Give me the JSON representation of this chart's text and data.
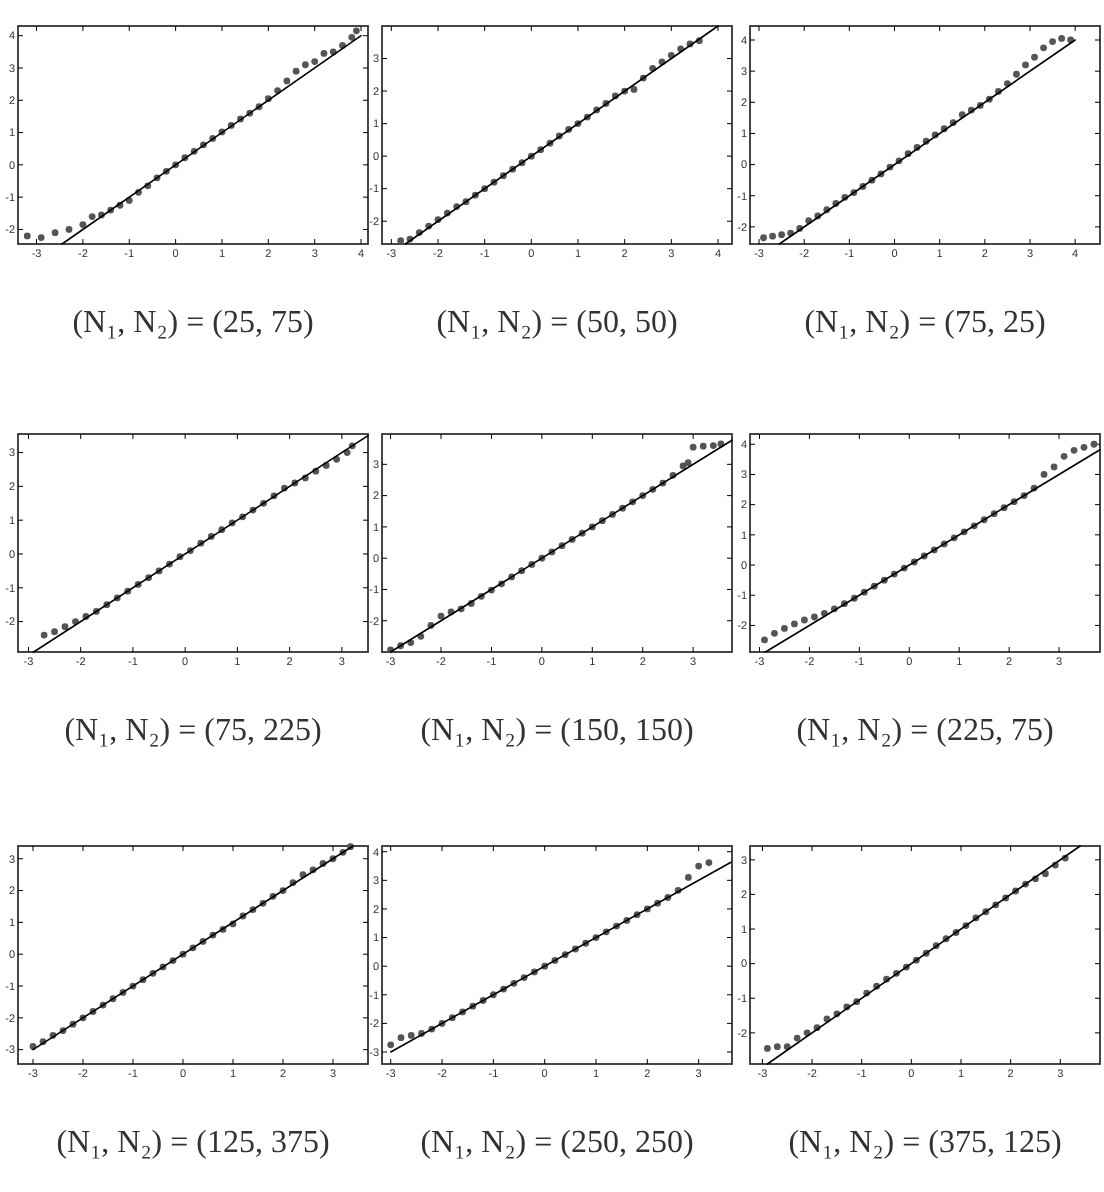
{
  "chart_data": [
    {
      "type": "scatter",
      "title": "(N₁, N₂) = (25, 75)",
      "xlim": [
        -3.4,
        4.15
      ],
      "ylim": [
        -2.45,
        4.3
      ],
      "xticks": [
        -3,
        -2,
        -1,
        0,
        1,
        2,
        3,
        4
      ],
      "yticks": [
        -2,
        -1,
        0,
        1,
        2,
        3,
        4
      ],
      "series": [
        {
          "type": "scatter",
          "marker": "circle",
          "color": "#555555",
          "x": [
            -3.2,
            -2.9,
            -2.6,
            -2.3,
            -2.0,
            -1.8,
            -1.6,
            -1.4,
            -1.2,
            -1.0,
            -0.8,
            -0.6,
            -0.4,
            -0.2,
            0,
            0.2,
            0.4,
            0.6,
            0.8,
            1.0,
            1.2,
            1.4,
            1.6,
            1.8,
            2.0,
            2.2,
            2.4,
            2.6,
            2.8,
            3.0,
            3.2,
            3.4,
            3.6,
            3.8,
            3.9
          ],
          "values": [
            -2.2,
            -2.25,
            -2.1,
            -2.0,
            -1.85,
            -1.6,
            -1.55,
            -1.4,
            -1.25,
            -1.1,
            -0.85,
            -0.65,
            -0.4,
            -0.2,
            0,
            0.22,
            0.42,
            0.62,
            0.82,
            1.02,
            1.22,
            1.42,
            1.6,
            1.8,
            2.05,
            2.3,
            2.6,
            2.9,
            3.1,
            3.2,
            3.45,
            3.5,
            3.7,
            3.95,
            4.15
          ]
        },
        {
          "type": "line",
          "color": "#000000",
          "x": [
            -2.45,
            4
          ],
          "values": [
            -2.45,
            4
          ]
        }
      ]
    },
    {
      "type": "scatter",
      "title": "(N₁, N₂) = (50, 50)",
      "xlim": [
        -3.2,
        4.3
      ],
      "ylim": [
        -2.7,
        4.0
      ],
      "xticks": [
        -3,
        -2,
        -1,
        0,
        1,
        2,
        3,
        4
      ],
      "yticks": [
        -2,
        -1,
        0,
        1,
        2,
        3
      ],
      "series": [
        {
          "type": "scatter",
          "marker": "circle",
          "color": "#555555",
          "x": [
            -2.8,
            -2.6,
            -2.4,
            -2.2,
            -2.0,
            -1.8,
            -1.6,
            -1.4,
            -1.2,
            -1.0,
            -0.8,
            -0.6,
            -0.4,
            -0.2,
            0,
            0.2,
            0.4,
            0.6,
            0.8,
            1.0,
            1.2,
            1.4,
            1.6,
            1.8,
            2.0,
            2.2,
            2.4,
            2.6,
            2.8,
            3.0,
            3.2,
            3.4,
            3.6
          ],
          "values": [
            -2.6,
            -2.55,
            -2.35,
            -2.15,
            -1.95,
            -1.75,
            -1.55,
            -1.4,
            -1.2,
            -1.0,
            -0.8,
            -0.6,
            -0.4,
            -0.2,
            0,
            0.2,
            0.4,
            0.62,
            0.82,
            1.0,
            1.2,
            1.42,
            1.62,
            1.85,
            2.0,
            2.05,
            2.4,
            2.7,
            2.9,
            3.1,
            3.3,
            3.45,
            3.55
          ]
        },
        {
          "type": "line",
          "color": "#000000",
          "x": [
            -2.7,
            4.0
          ],
          "values": [
            -2.7,
            4.0
          ]
        }
      ]
    },
    {
      "type": "scatter",
      "title": "(N₁, N₂) = (75, 25)",
      "xlim": [
        -3.2,
        4.55
      ],
      "ylim": [
        -2.55,
        4.45
      ],
      "xticks": [
        -3,
        -2,
        -1,
        0,
        1,
        2,
        3,
        4
      ],
      "yticks": [
        -2,
        -1,
        0,
        1,
        2,
        3,
        4
      ],
      "series": [
        {
          "type": "scatter",
          "marker": "circle",
          "color": "#555555",
          "x": [
            -2.9,
            -2.7,
            -2.5,
            -2.3,
            -2.1,
            -1.9,
            -1.7,
            -1.5,
            -1.3,
            -1.1,
            -0.9,
            -0.7,
            -0.5,
            -0.3,
            -0.1,
            0.1,
            0.3,
            0.5,
            0.7,
            0.9,
            1.1,
            1.3,
            1.5,
            1.7,
            1.9,
            2.1,
            2.3,
            2.5,
            2.7,
            2.9,
            3.1,
            3.3,
            3.5,
            3.7,
            3.9
          ],
          "values": [
            -2.35,
            -2.3,
            -2.25,
            -2.2,
            -2.05,
            -1.8,
            -1.65,
            -1.45,
            -1.25,
            -1.05,
            -0.9,
            -0.7,
            -0.5,
            -0.3,
            -0.08,
            0.12,
            0.35,
            0.55,
            0.75,
            0.95,
            1.15,
            1.35,
            1.6,
            1.75,
            1.9,
            2.1,
            2.35,
            2.6,
            2.9,
            3.2,
            3.45,
            3.75,
            3.95,
            4.05,
            4.0
          ]
        },
        {
          "type": "line",
          "color": "#000000",
          "x": [
            -2.55,
            4
          ],
          "values": [
            -2.55,
            4
          ]
        }
      ]
    },
    {
      "type": "scatter",
      "title": "(N₁, N₂) = (75, 225)",
      "xlim": [
        -3.2,
        3.5
      ],
      "ylim": [
        -2.9,
        3.55
      ],
      "xticks": [
        -3,
        -2,
        -1,
        0,
        1,
        2,
        3
      ],
      "yticks": [
        -2,
        -1,
        0,
        1,
        2,
        3
      ],
      "series": [
        {
          "type": "scatter",
          "marker": "circle",
          "color": "#555555",
          "x": [
            -2.7,
            -2.5,
            -2.3,
            -2.1,
            -1.9,
            -1.7,
            -1.5,
            -1.3,
            -1.1,
            -0.9,
            -0.7,
            -0.5,
            -0.3,
            -0.1,
            0.1,
            0.3,
            0.5,
            0.7,
            0.9,
            1.1,
            1.3,
            1.5,
            1.7,
            1.9,
            2.1,
            2.3,
            2.5,
            2.7,
            2.9,
            3.1,
            3.2
          ],
          "values": [
            -2.4,
            -2.3,
            -2.15,
            -2.0,
            -1.85,
            -1.7,
            -1.5,
            -1.3,
            -1.1,
            -0.9,
            -0.7,
            -0.5,
            -0.3,
            -0.08,
            0.1,
            0.32,
            0.52,
            0.72,
            0.92,
            1.1,
            1.3,
            1.5,
            1.72,
            1.95,
            2.1,
            2.25,
            2.45,
            2.62,
            2.8,
            3.0,
            3.2
          ]
        },
        {
          "type": "line",
          "color": "#000000",
          "x": [
            -2.9,
            3.5
          ],
          "values": [
            -2.9,
            3.5
          ]
        }
      ]
    },
    {
      "type": "scatter",
      "title": "(N₁, N₂) = (150, 150)",
      "xlim": [
        -3.17,
        3.77
      ],
      "ylim": [
        -3.0,
        3.97
      ],
      "xticks": [
        -3,
        -2,
        -1,
        0,
        1,
        2,
        3
      ],
      "yticks": [
        -2,
        -1,
        0,
        1,
        2,
        3
      ],
      "series": [
        {
          "type": "scatter",
          "marker": "circle",
          "color": "#555555",
          "x": [
            -3.0,
            -2.8,
            -2.6,
            -2.4,
            -2.2,
            -2.0,
            -1.8,
            -1.6,
            -1.4,
            -1.2,
            -1.0,
            -0.8,
            -0.6,
            -0.4,
            -0.2,
            0,
            0.2,
            0.4,
            0.6,
            0.8,
            1.0,
            1.2,
            1.4,
            1.6,
            1.8,
            2.0,
            2.2,
            2.4,
            2.6,
            2.8,
            2.9,
            3.0,
            3.2,
            3.4,
            3.55
          ],
          "values": [
            -2.93,
            -2.8,
            -2.7,
            -2.5,
            -2.15,
            -1.85,
            -1.72,
            -1.62,
            -1.45,
            -1.22,
            -1.02,
            -0.82,
            -0.6,
            -0.4,
            -0.2,
            0,
            0.2,
            0.4,
            0.6,
            0.8,
            1.0,
            1.2,
            1.4,
            1.6,
            1.8,
            2.0,
            2.2,
            2.4,
            2.65,
            2.95,
            3.05,
            3.55,
            3.58,
            3.6,
            3.65
          ]
        },
        {
          "type": "line",
          "color": "#000000",
          "x": [
            -3.0,
            3.77
          ],
          "values": [
            -3.0,
            3.77
          ]
        }
      ]
    },
    {
      "type": "scatter",
      "title": "(N₁, N₂) = (225, 75)",
      "xlim": [
        -3.19,
        3.82
      ],
      "ylim": [
        -2.88,
        4.34
      ],
      "xticks": [
        -3,
        -2,
        -1,
        0,
        1,
        2,
        3
      ],
      "yticks": [
        -2,
        -1,
        0,
        1,
        2,
        3,
        4
      ],
      "series": [
        {
          "type": "scatter",
          "marker": "circle",
          "color": "#555555",
          "x": [
            -2.9,
            -2.7,
            -2.5,
            -2.3,
            -2.1,
            -1.9,
            -1.7,
            -1.5,
            -1.3,
            -1.1,
            -0.9,
            -0.7,
            -0.5,
            -0.3,
            -0.1,
            0.1,
            0.3,
            0.5,
            0.7,
            0.9,
            1.1,
            1.3,
            1.5,
            1.7,
            1.9,
            2.1,
            2.3,
            2.5,
            2.7,
            2.9,
            3.1,
            3.3,
            3.5,
            3.7
          ],
          "values": [
            -2.48,
            -2.26,
            -2.1,
            -1.95,
            -1.82,
            -1.72,
            -1.6,
            -1.45,
            -1.28,
            -1.1,
            -0.9,
            -0.7,
            -0.5,
            -0.3,
            -0.1,
            0.1,
            0.3,
            0.5,
            0.7,
            0.9,
            1.1,
            1.3,
            1.5,
            1.7,
            1.9,
            2.1,
            2.3,
            2.55,
            3.0,
            3.25,
            3.6,
            3.8,
            3.9,
            4.0
          ]
        },
        {
          "type": "line",
          "color": "#000000",
          "x": [
            -2.88,
            3.82
          ],
          "values": [
            -2.88,
            3.82
          ]
        }
      ]
    },
    {
      "type": "scatter",
      "title": "(N₁, N₂) = (125, 375)",
      "xlim": [
        -3.3,
        3.7
      ],
      "ylim": [
        -3.45,
        3.4
      ],
      "xticks": [
        -3,
        -2,
        -1,
        0,
        1,
        2,
        3
      ],
      "yticks": [
        -3,
        -2,
        -1,
        0,
        1,
        2,
        3
      ],
      "series": [
        {
          "type": "scatter",
          "marker": "circle",
          "color": "#555555",
          "x": [
            -3.0,
            -2.8,
            -2.6,
            -2.4,
            -2.2,
            -2.0,
            -1.8,
            -1.6,
            -1.4,
            -1.2,
            -1.0,
            -0.8,
            -0.6,
            -0.4,
            -0.2,
            0,
            0.2,
            0.4,
            0.6,
            0.8,
            1.0,
            1.2,
            1.4,
            1.6,
            1.8,
            2.0,
            2.2,
            2.4,
            2.6,
            2.8,
            3.0,
            3.2,
            3.35
          ],
          "values": [
            -2.9,
            -2.75,
            -2.55,
            -2.4,
            -2.2,
            -2.0,
            -1.8,
            -1.6,
            -1.4,
            -1.2,
            -1.0,
            -0.8,
            -0.6,
            -0.4,
            -0.2,
            0,
            0.2,
            0.4,
            0.6,
            0.78,
            0.95,
            1.2,
            1.4,
            1.6,
            1.82,
            2.0,
            2.25,
            2.5,
            2.65,
            2.85,
            3.0,
            3.2,
            3.38
          ]
        },
        {
          "type": "line",
          "color": "#000000",
          "x": [
            -3.0,
            3.4
          ],
          "values": [
            -3.0,
            3.4
          ]
        }
      ]
    },
    {
      "type": "scatter",
      "title": "(N₁, N₂) = (250, 250)",
      "xlim": [
        -3.17,
        3.65
      ],
      "ylim": [
        -3.42,
        4.2
      ],
      "xticks": [
        -3,
        -2,
        -1,
        0,
        1,
        2,
        3
      ],
      "yticks": [
        -3,
        -2,
        -1,
        0,
        1,
        2,
        3,
        4
      ],
      "series": [
        {
          "type": "scatter",
          "marker": "circle",
          "color": "#555555",
          "x": [
            -3.0,
            -2.8,
            -2.6,
            -2.4,
            -2.2,
            -2.0,
            -1.8,
            -1.6,
            -1.4,
            -1.2,
            -1.0,
            -0.8,
            -0.6,
            -0.4,
            -0.2,
            0,
            0.2,
            0.4,
            0.6,
            0.8,
            1.0,
            1.2,
            1.4,
            1.6,
            1.8,
            2.0,
            2.2,
            2.4,
            2.6,
            2.8,
            3.0,
            3.2
          ],
          "values": [
            -2.75,
            -2.5,
            -2.42,
            -2.35,
            -2.2,
            -2.0,
            -1.8,
            -1.6,
            -1.4,
            -1.2,
            -1.0,
            -0.8,
            -0.6,
            -0.4,
            -0.2,
            0,
            0.2,
            0.4,
            0.6,
            0.8,
            1.0,
            1.2,
            1.4,
            1.6,
            1.8,
            2.0,
            2.2,
            2.4,
            2.65,
            3.1,
            3.5,
            3.62
          ]
        },
        {
          "type": "line",
          "color": "#000000",
          "x": [
            -3.0,
            3.63
          ],
          "values": [
            -3.0,
            3.63
          ]
        }
      ]
    },
    {
      "type": "scatter",
      "title": "(N₁, N₂) = (375, 125)",
      "xlim": [
        -3.25,
        3.8
      ],
      "ylim": [
        -2.9,
        3.4
      ],
      "xticks": [
        -3,
        -2,
        -1,
        0,
        1,
        2,
        3
      ],
      "yticks": [
        -2,
        -1,
        0,
        1,
        2,
        3
      ],
      "series": [
        {
          "type": "scatter",
          "marker": "circle",
          "color": "#555555",
          "x": [
            -2.9,
            -2.7,
            -2.5,
            -2.3,
            -2.1,
            -1.9,
            -1.7,
            -1.5,
            -1.3,
            -1.1,
            -0.9,
            -0.7,
            -0.5,
            -0.3,
            -0.1,
            0.1,
            0.3,
            0.5,
            0.7,
            0.9,
            1.1,
            1.3,
            1.5,
            1.7,
            1.9,
            2.1,
            2.3,
            2.5,
            2.7,
            2.9,
            3.1
          ],
          "values": [
            -2.45,
            -2.4,
            -2.4,
            -2.15,
            -2.0,
            -1.85,
            -1.6,
            -1.45,
            -1.25,
            -1.1,
            -0.85,
            -0.65,
            -0.45,
            -0.28,
            -0.1,
            0.1,
            0.3,
            0.52,
            0.72,
            0.9,
            1.1,
            1.32,
            1.5,
            1.7,
            1.9,
            2.1,
            2.3,
            2.45,
            2.6,
            2.85,
            3.05
          ]
        },
        {
          "type": "line",
          "color": "#000000",
          "x": [
            -2.9,
            3.4
          ],
          "values": [
            -2.9,
            3.4
          ]
        }
      ]
    }
  ]
}
